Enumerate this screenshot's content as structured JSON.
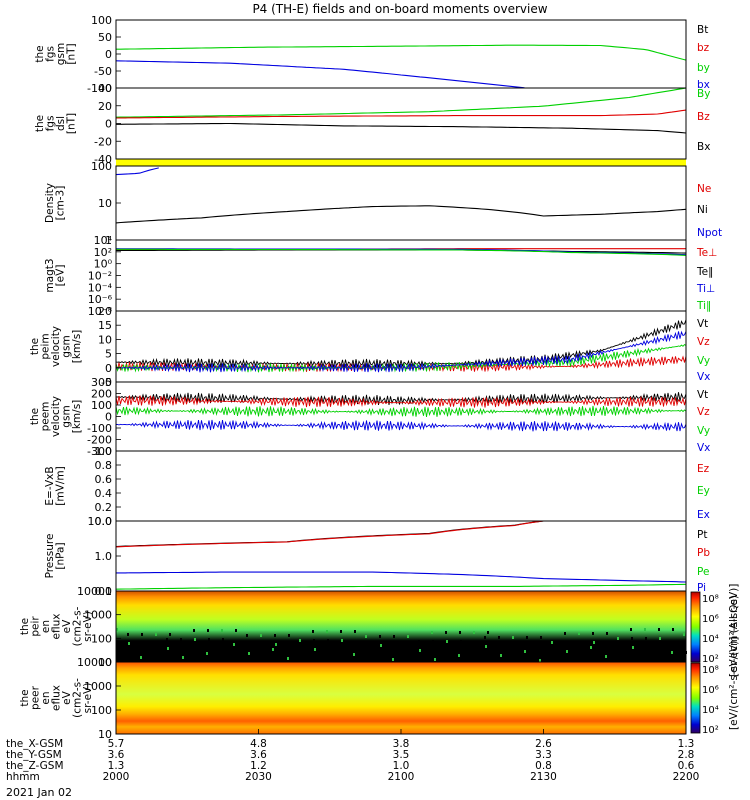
{
  "title": "P4 (TH-E) fields and on-board moments overview",
  "colors": {
    "black": "#000000",
    "red": "#e00000",
    "green": "#00d000",
    "blue": "#0000e0",
    "yellow": "#ffff00"
  },
  "chart_data": [
    {
      "type": "line",
      "panel": "fgs_gsm",
      "ylabel": [
        "the",
        "fgs",
        "gsm",
        "[nT]"
      ],
      "ylim": [
        -100,
        100
      ],
      "yticks": [
        "100",
        "50",
        "0",
        "-50",
        "-100"
      ],
      "legend": [
        {
          "label": "Bt",
          "color": "#000000"
        },
        {
          "label": "bz",
          "color": "#e00000"
        },
        {
          "label": "by",
          "color": "#00d000"
        },
        {
          "label": "bx",
          "color": "#0000e0"
        }
      ],
      "series": [
        {
          "name": "by",
          "color": "#00d000",
          "x": [
            0,
            0.25,
            0.5,
            0.7,
            0.85,
            0.93,
            1.0
          ],
          "y": [
            14,
            20,
            23,
            26,
            25,
            13,
            -18
          ]
        },
        {
          "name": "bx",
          "color": "#0000e0",
          "x": [
            0,
            0.2,
            0.4,
            0.55,
            0.68,
            0.72
          ],
          "y": [
            -20,
            -27,
            -45,
            -70,
            -93,
            -100
          ]
        }
      ]
    },
    {
      "type": "line",
      "panel": "fgs_dsl",
      "ylabel": [
        "the",
        "fgs",
        "dsl",
        "[nT]"
      ],
      "ylim": [
        -50,
        40
      ],
      "yticks": [
        "40",
        "20",
        "0",
        "-20",
        "-40"
      ],
      "legend": [
        {
          "label": "By",
          "color": "#00d000"
        },
        {
          "label": "Bz",
          "color": "#e00000"
        },
        {
          "label": "Bx",
          "color": "#000000"
        }
      ],
      "series": [
        {
          "name": "By",
          "color": "#00d000",
          "x": [
            0,
            0.3,
            0.55,
            0.75,
            0.9,
            1.0
          ],
          "y": [
            3,
            6,
            10,
            17,
            28,
            40
          ]
        },
        {
          "name": "Bz",
          "color": "#e00000",
          "x": [
            0,
            0.3,
            0.6,
            0.85,
            0.95,
            1.0
          ],
          "y": [
            2,
            4,
            5,
            5,
            7,
            12
          ]
        },
        {
          "name": "Bx",
          "color": "#000000",
          "x": [
            0,
            0.2,
            0.4,
            0.6,
            0.8,
            0.95,
            1.0
          ],
          "y": [
            -6,
            -5,
            -8,
            -9,
            -11,
            -14,
            -17
          ]
        }
      ]
    },
    {
      "type": "line",
      "panel": "density",
      "ylabel": [
        "Density",
        "[cm-3]"
      ],
      "yscale": "log",
      "ylim": [
        0.5,
        200
      ],
      "yticks": [
        "100",
        "10",
        "1"
      ],
      "legend": [
        {
          "label": "Ne",
          "color": "#e00000"
        },
        {
          "label": "Ni",
          "color": "#000000"
        },
        {
          "label": "Npot",
          "color": "#0000e0"
        }
      ],
      "series": [
        {
          "name": "Ni",
          "color": "#000000",
          "x": [
            0,
            0.15,
            0.3,
            0.45,
            0.55,
            0.65,
            0.75,
            0.85,
            0.95,
            1.0
          ],
          "y": [
            2,
            3,
            5,
            7.5,
            8,
            6,
            3.5,
            4,
            5,
            6
          ]
        },
        {
          "name": "Npot",
          "color": "#0000e0",
          "x": [
            0,
            0.04,
            0.08
          ],
          "y": [
            100,
            110,
            180
          ]
        }
      ]
    },
    {
      "type": "line",
      "panel": "temperature",
      "ylabel": [
        "magt3",
        "[eV]"
      ],
      "yscale": "log",
      "ylim": [
        1e-08,
        100000.0
      ],
      "yticks": [
        "10⁴",
        "10²",
        "10⁰",
        "10⁻²",
        "10⁻⁴",
        "10⁻⁶",
        "10⁻⁸"
      ],
      "legend": [
        {
          "label": "Te⊥",
          "color": "#e00000"
        },
        {
          "label": "Te‖",
          "color": "#000000"
        },
        {
          "label": "Ti⊥",
          "color": "#0000e0"
        },
        {
          "label": "Ti‖",
          "color": "#00d000"
        }
      ],
      "series": [
        {
          "name": "Te⊥",
          "color": "#e00000",
          "x": [
            0,
            0.3,
            0.6,
            0.8,
            1.0
          ],
          "y": [
            1500,
            2000,
            2500,
            2500,
            2500
          ]
        },
        {
          "name": "Te‖",
          "color": "#000000",
          "x": [
            0,
            0.3,
            0.6,
            0.8,
            1.0
          ],
          "y": [
            1200,
            1500,
            1500,
            800,
            400
          ]
        },
        {
          "name": "Ti⊥",
          "color": "#0000e0",
          "x": [
            0,
            0.3,
            0.6,
            0.8,
            1.0
          ],
          "y": [
            2500,
            2200,
            2000,
            600,
            200
          ]
        },
        {
          "name": "Ti‖",
          "color": "#00d000",
          "x": [
            0,
            0.3,
            0.6,
            0.8,
            1.0
          ],
          "y": [
            2000,
            1800,
            1500,
            500,
            150
          ]
        }
      ]
    },
    {
      "type": "line",
      "panel": "peim_velocity",
      "ylabel": [
        "the",
        "peim",
        "velocity",
        "gsm",
        "[km/s]"
      ],
      "ylim": [
        -5,
        20
      ],
      "yticks": [
        "20",
        "15",
        "10",
        "5",
        "0",
        "-5"
      ],
      "legend": [
        {
          "label": "Vt",
          "color": "#000000"
        },
        {
          "label": "Vz",
          "color": "#e00000"
        },
        {
          "label": "Vy",
          "color": "#00d000"
        },
        {
          "label": "Vx",
          "color": "#0000e0"
        }
      ],
      "series": [
        {
          "name": "Vt",
          "color": "#000000",
          "x": [
            0,
            0.3,
            0.6,
            0.75,
            0.85,
            1.0
          ],
          "y": [
            2,
            1.5,
            1.5,
            3,
            6,
            16
          ]
        },
        {
          "name": "Vz",
          "color": "#e00000",
          "x": [
            0,
            0.5,
            0.8,
            1.0
          ],
          "y": [
            0.5,
            0,
            0.5,
            3
          ]
        },
        {
          "name": "Vy",
          "color": "#00d000",
          "x": [
            0,
            0.5,
            0.8,
            1.0
          ],
          "y": [
            0,
            0,
            2,
            8
          ]
        },
        {
          "name": "Vx",
          "color": "#0000e0",
          "x": [
            0,
            0.5,
            0.8,
            1.0
          ],
          "y": [
            0,
            0,
            3,
            12
          ]
        }
      ]
    },
    {
      "type": "line",
      "panel": "peem_velocity",
      "ylabel": [
        "the",
        "peem",
        "velocity",
        "gsm",
        "[km/s]"
      ],
      "ylim": [
        -300,
        300
      ],
      "yticks": [
        "300",
        "200",
        "100",
        "0",
        "-100",
        "-200",
        "-300"
      ],
      "legend": [
        {
          "label": "Vt",
          "color": "#000000"
        },
        {
          "label": "Vz",
          "color": "#e00000"
        },
        {
          "label": "Vy",
          "color": "#00d000"
        },
        {
          "label": "Vx",
          "color": "#0000e0"
        }
      ],
      "series": [
        {
          "name": "Vt",
          "color": "#000000",
          "x": [
            0,
            0.5,
            1.0
          ],
          "y": [
            170,
            140,
            170
          ]
        },
        {
          "name": "Vz",
          "color": "#e00000",
          "x": [
            0,
            0.5,
            1.0
          ],
          "y": [
            140,
            120,
            130
          ]
        },
        {
          "name": "Vy",
          "color": "#00d000",
          "x": [
            0,
            0.5,
            1.0
          ],
          "y": [
            50,
            40,
            50
          ]
        },
        {
          "name": "Vx",
          "color": "#0000e0",
          "x": [
            0,
            0.5,
            1.0
          ],
          "y": [
            -70,
            -80,
            -90
          ]
        }
      ]
    },
    {
      "type": "line",
      "panel": "efield",
      "ylabel": [
        "E=-VxB",
        "[mV/m]"
      ],
      "ylim": [
        0,
        1
      ],
      "yticks": [
        "1.0",
        "0.8",
        "0.6",
        "0.4",
        "0.2",
        "0.0"
      ],
      "legend": [
        {
          "label": "Ez",
          "color": "#e00000"
        },
        {
          "label": "Ey",
          "color": "#00d000"
        },
        {
          "label": "Ex",
          "color": "#0000e0"
        }
      ],
      "series": []
    },
    {
      "type": "line",
      "panel": "pressure",
      "ylabel": [
        "Pressure",
        "[nPa]"
      ],
      "yscale": "log",
      "ylim": [
        0.02,
        100
      ],
      "yticks": [
        "10.0",
        "1.0",
        "0.1"
      ],
      "legend": [
        {
          "label": "Pt",
          "color": "#000000"
        },
        {
          "label": "Pb",
          "color": "#e00000"
        },
        {
          "label": "Pe",
          "color": "#00d000"
        },
        {
          "label": "Pi",
          "color": "#0000e0"
        }
      ],
      "series": [
        {
          "name": "Pt",
          "color": "#000000",
          "x": [
            0,
            0.3,
            0.55,
            0.7,
            0.75
          ],
          "y": [
            4.5,
            8,
            22,
            60,
            100
          ]
        },
        {
          "name": "Pb",
          "color": "#e00000",
          "x": [
            0,
            0.3,
            0.55,
            0.7,
            0.75
          ],
          "y": [
            4.3,
            7.8,
            21,
            58,
            100
          ]
        },
        {
          "name": "Pi",
          "color": "#0000e0",
          "x": [
            0,
            0.2,
            0.45,
            0.6,
            0.75,
            0.9,
            1.0
          ],
          "y": [
            0.18,
            0.2,
            0.2,
            0.15,
            0.09,
            0.07,
            0.06
          ]
        },
        {
          "name": "Pe",
          "color": "#00d000",
          "x": [
            0,
            0.2,
            0.45,
            0.7,
            0.9,
            1.0
          ],
          "y": [
            0.025,
            0.03,
            0.035,
            0.035,
            0.04,
            0.045
          ]
        }
      ]
    },
    {
      "type": "heatmap",
      "panel": "peir_en_eflux",
      "ylabel": [
        "the",
        "peir",
        "en",
        "eflux",
        "eV",
        "(cm2-s-",
        "sr-eV)"
      ],
      "yscale": "log",
      "ylim": [
        7,
        30000
      ],
      "yticks": [
        "10000",
        "1000",
        "100",
        "10"
      ]
    },
    {
      "type": "heatmap",
      "panel": "peer_en_eflux",
      "ylabel": [
        "the",
        "peer",
        "en",
        "eflux",
        "eV",
        "(cm2-s-",
        "sr-eV)"
      ],
      "yscale": "log",
      "ylim": [
        7,
        30000
      ],
      "yticks": [
        "10000",
        "1000",
        "100",
        "10"
      ]
    }
  ],
  "colorbar": {
    "label": "[eV/(cm²-s-sr-eV)] (All Qs)",
    "label_overlap": "[eV/(cm²-s-sr-eV)]",
    "ticks_top": [
      "10⁸",
      "10⁶",
      "10⁴",
      "10²"
    ],
    "ticks_bottom": [
      "10⁸",
      "10⁶",
      "10⁴",
      "10²"
    ]
  },
  "status_bar_color": "#ffff00",
  "xaxis": {
    "tick_labels": [
      {
        "label": "the_X-GSM",
        "values": [
          "5.7",
          "4.8",
          "3.8",
          "2.6",
          "1.3"
        ]
      },
      {
        "label": "the_Y-GSM",
        "values": [
          "3.6",
          "3.6",
          "3.5",
          "3.3",
          "2.8"
        ]
      },
      {
        "label": "the_Z-GSM",
        "values": [
          "1.3",
          "1.2",
          "1.0",
          "0.8",
          "0.6"
        ]
      },
      {
        "label": "hhmm",
        "values": [
          "2000",
          "2030",
          "2100",
          "2130",
          "2200"
        ]
      }
    ],
    "date": "2021 Jan 02"
  }
}
